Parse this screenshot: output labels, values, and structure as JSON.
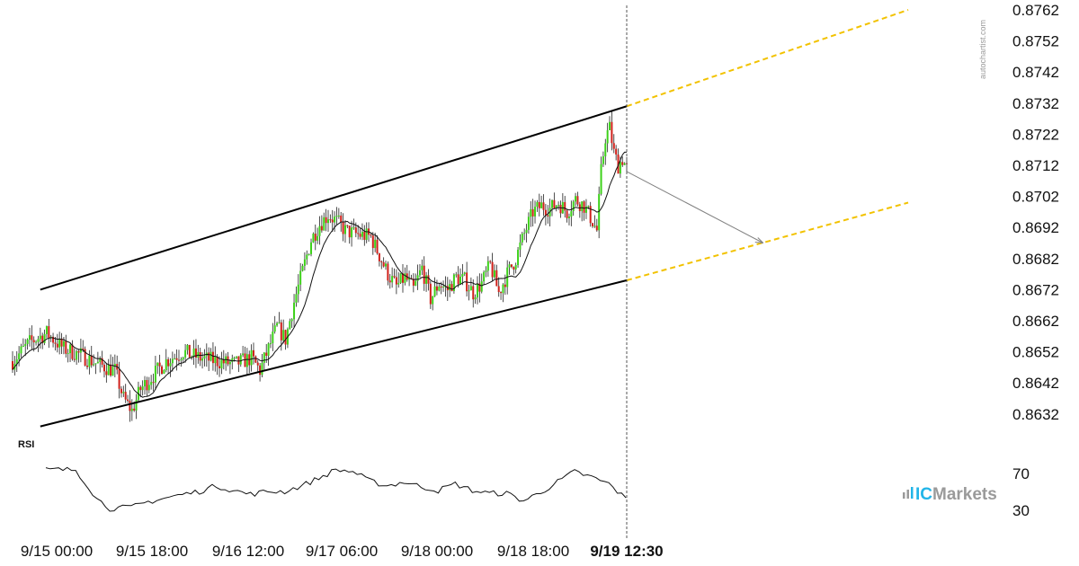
{
  "chart_data": {
    "type": "candlestick",
    "instrument_note": "",
    "y_axis": {
      "ticks": [
        "0.8762",
        "0.8752",
        "0.8742",
        "0.8732",
        "0.8722",
        "0.8712",
        "0.8702",
        "0.8692",
        "0.8682",
        "0.8672",
        "0.8662",
        "0.8652",
        "0.8642",
        "0.8632"
      ],
      "range": [
        0.8627,
        0.8765
      ]
    },
    "x_axis": {
      "ticks": [
        "9/15 00:00",
        "9/15 18:00",
        "9/16 12:00",
        "9/17 06:00",
        "9/18 00:00",
        "9/18 18:00"
      ],
      "current_label": "9/19 12:30"
    },
    "price_series": [
      {
        "t": 0,
        "p": 0.8649
      },
      {
        "t": 4,
        "p": 0.8655
      },
      {
        "t": 8,
        "p": 0.8658
      },
      {
        "t": 12,
        "p": 0.8653
      },
      {
        "t": 16,
        "p": 0.8651
      },
      {
        "t": 20,
        "p": 0.8648
      },
      {
        "t": 24,
        "p": 0.8646
      },
      {
        "t": 26,
        "p": 0.8637
      },
      {
        "t": 28,
        "p": 0.8633
      },
      {
        "t": 30,
        "p": 0.864
      },
      {
        "t": 32,
        "p": 0.8643
      },
      {
        "t": 36,
        "p": 0.8649
      },
      {
        "t": 40,
        "p": 0.8652
      },
      {
        "t": 44,
        "p": 0.865
      },
      {
        "t": 48,
        "p": 0.8649
      },
      {
        "t": 52,
        "p": 0.8648
      },
      {
        "t": 56,
        "p": 0.865
      },
      {
        "t": 58,
        "p": 0.8646
      },
      {
        "t": 60,
        "p": 0.8653
      },
      {
        "t": 62,
        "p": 0.866
      },
      {
        "t": 64,
        "p": 0.8656
      },
      {
        "t": 66,
        "p": 0.8668
      },
      {
        "t": 68,
        "p": 0.8678
      },
      {
        "t": 70,
        "p": 0.8688
      },
      {
        "t": 72,
        "p": 0.8693
      },
      {
        "t": 74,
        "p": 0.8696
      },
      {
        "t": 76,
        "p": 0.8694
      },
      {
        "t": 78,
        "p": 0.8691
      },
      {
        "t": 80,
        "p": 0.869
      },
      {
        "t": 84,
        "p": 0.8689
      },
      {
        "t": 86,
        "p": 0.8683
      },
      {
        "t": 88,
        "p": 0.8677
      },
      {
        "t": 90,
        "p": 0.8673
      },
      {
        "t": 92,
        "p": 0.8676
      },
      {
        "t": 94,
        "p": 0.8672
      },
      {
        "t": 96,
        "p": 0.8679
      },
      {
        "t": 98,
        "p": 0.8669
      },
      {
        "t": 100,
        "p": 0.8674
      },
      {
        "t": 102,
        "p": 0.8672
      },
      {
        "t": 104,
        "p": 0.8676
      },
      {
        "t": 106,
        "p": 0.8675
      },
      {
        "t": 108,
        "p": 0.8671
      },
      {
        "t": 110,
        "p": 0.8674
      },
      {
        "t": 112,
        "p": 0.868
      },
      {
        "t": 114,
        "p": 0.8671
      },
      {
        "t": 116,
        "p": 0.8677
      },
      {
        "t": 118,
        "p": 0.8682
      },
      {
        "t": 120,
        "p": 0.869
      },
      {
        "t": 122,
        "p": 0.8697
      },
      {
        "t": 124,
        "p": 0.8699
      },
      {
        "t": 126,
        "p": 0.8698
      },
      {
        "t": 128,
        "p": 0.87
      },
      {
        "t": 130,
        "p": 0.8697
      },
      {
        "t": 132,
        "p": 0.8701
      },
      {
        "t": 134,
        "p": 0.8699
      },
      {
        "t": 136,
        "p": 0.8694
      },
      {
        "t": 137,
        "p": 0.8691
      },
      {
        "t": 138,
        "p": 0.871
      },
      {
        "t": 139,
        "p": 0.8721
      },
      {
        "t": 140,
        "p": 0.8724
      },
      {
        "t": 141,
        "p": 0.8716
      },
      {
        "t": 142,
        "p": 0.8712
      },
      {
        "t": 143,
        "p": 0.8714
      },
      {
        "t": 144,
        "p": 0.8711
      }
    ],
    "channel": {
      "upper": [
        {
          "t": 6.5,
          "p": 0.8672
        },
        {
          "t": 144,
          "p": 0.8731
        }
      ],
      "lower": [
        {
          "t": 6.5,
          "p": 0.8628
        },
        {
          "t": 144,
          "p": 0.8675
        }
      ],
      "upper_projection": [
        {
          "t": 144,
          "p": 0.8731
        },
        {
          "t": 210,
          "p": 0.8762
        }
      ],
      "lower_projection": [
        {
          "t": 144,
          "p": 0.8675
        },
        {
          "t": 210,
          "p": 0.87
        }
      ],
      "arrow": [
        {
          "t": 144,
          "p": 0.871
        },
        {
          "t": 176,
          "p": 0.8687
        }
      ],
      "colors": {
        "channel": "#000000",
        "projection": "#f2c200",
        "arrow": "#808080"
      }
    },
    "rsi": {
      "label": "RSI",
      "levels": [
        "70",
        "30"
      ],
      "values": [
        {
          "t": 0,
          "v": 73
        },
        {
          "t": 7,
          "v": 73
        },
        {
          "t": 10,
          "v": 55
        },
        {
          "t": 12,
          "v": 42
        },
        {
          "t": 15,
          "v": 32
        },
        {
          "t": 20,
          "v": 33
        },
        {
          "t": 24,
          "v": 39
        },
        {
          "t": 30,
          "v": 45
        },
        {
          "t": 36,
          "v": 50
        },
        {
          "t": 40,
          "v": 56
        },
        {
          "t": 44,
          "v": 51
        },
        {
          "t": 48,
          "v": 47
        },
        {
          "t": 52,
          "v": 50
        },
        {
          "t": 56,
          "v": 50
        },
        {
          "t": 60,
          "v": 56
        },
        {
          "t": 64,
          "v": 64
        },
        {
          "t": 68,
          "v": 73
        },
        {
          "t": 72,
          "v": 71
        },
        {
          "t": 76,
          "v": 61
        },
        {
          "t": 80,
          "v": 56
        },
        {
          "t": 84,
          "v": 60
        },
        {
          "t": 88,
          "v": 55
        },
        {
          "t": 92,
          "v": 51
        },
        {
          "t": 96,
          "v": 58
        },
        {
          "t": 100,
          "v": 51
        },
        {
          "t": 104,
          "v": 48
        },
        {
          "t": 108,
          "v": 48
        },
        {
          "t": 112,
          "v": 40
        },
        {
          "t": 116,
          "v": 49
        },
        {
          "t": 120,
          "v": 60
        },
        {
          "t": 124,
          "v": 71
        },
        {
          "t": 128,
          "v": 65
        },
        {
          "t": 132,
          "v": 58
        },
        {
          "t": 136,
          "v": 42
        },
        {
          "t": 140,
          "v": 42
        },
        {
          "t": 142,
          "v": 42
        },
        {
          "t": 144,
          "v": 58
        }
      ]
    },
    "candle_colors": {
      "up": "#3dd11a",
      "down": "#d0201a",
      "wick": "#222222",
      "ma": "#111111"
    },
    "crosshair": "vertical dashed line at latest bar",
    "grid": false
  },
  "watermark": "autochartist.com",
  "brand": {
    "prefix": "IC",
    "suffix": "Markets",
    "accent": "#22b5e8",
    "gray": "#9a9a9a"
  }
}
